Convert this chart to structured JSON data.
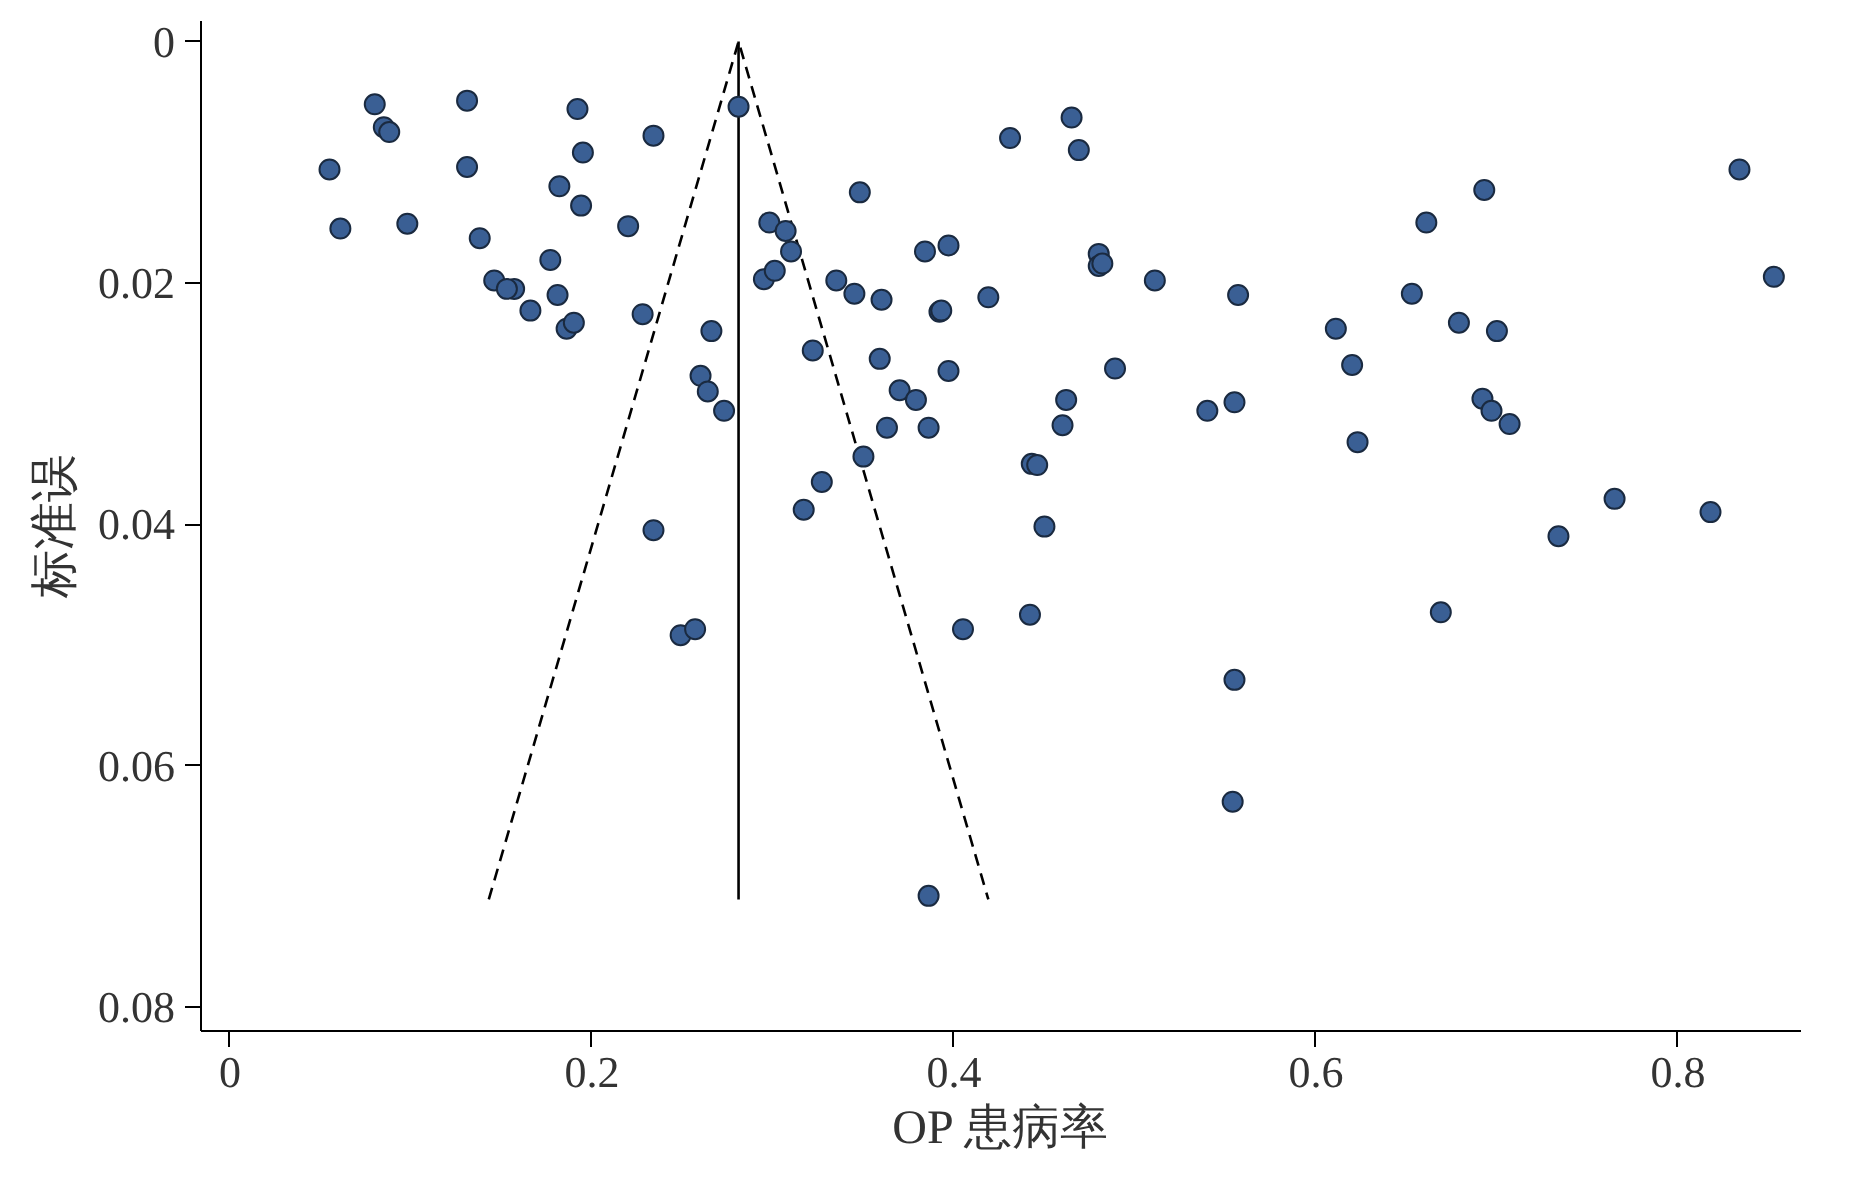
{
  "chart_data": {
    "type": "scatter",
    "xlabel": "OP 患病率",
    "ylabel": "标准误",
    "xlim": [
      -0.016,
      0.868
    ],
    "ylim": [
      0.082,
      -0.0017
    ],
    "xticks": [
      0,
      0.2,
      0.4,
      0.6,
      0.8
    ],
    "yticks": [
      {
        "value": 0,
        "label": "0"
      },
      {
        "value": 0.02,
        "label": "0.02"
      },
      {
        "value": 0.04,
        "label": "0.04"
      },
      {
        "value": 0.06,
        "label": "0.06"
      },
      {
        "value": 0.08,
        "label": "0.08"
      }
    ],
    "grid": false,
    "marker": "circle",
    "series": [
      {
        "color": "#3a5f94",
        "x": [
          0.055,
          0.061,
          0.08,
          0.085,
          0.088,
          0.098,
          0.131,
          0.131,
          0.138,
          0.146,
          0.157,
          0.153,
          0.166,
          0.177,
          0.181,
          0.182,
          0.186,
          0.19,
          0.192,
          0.194,
          0.195,
          0.22,
          0.228,
          0.234,
          0.234,
          0.249,
          0.257,
          0.26,
          0.264,
          0.266,
          0.273,
          0.281,
          0.295,
          0.298,
          0.301,
          0.307,
          0.31,
          0.322,
          0.327,
          0.317,
          0.335,
          0.345,
          0.35,
          0.348,
          0.359,
          0.363,
          0.36,
          0.37,
          0.379,
          0.384,
          0.386,
          0.392,
          0.393,
          0.397,
          0.397,
          0.386,
          0.405,
          0.419,
          0.431,
          0.443,
          0.446,
          0.45,
          0.442,
          0.46,
          0.462,
          0.465,
          0.469,
          0.48,
          0.48,
          0.482,
          0.489,
          0.511,
          0.54,
          0.555,
          0.555,
          0.554,
          0.557,
          0.611,
          0.623,
          0.62,
          0.653,
          0.661,
          0.669,
          0.679,
          0.693,
          0.692,
          0.697,
          0.7,
          0.707,
          0.734,
          0.765,
          0.818,
          0.834,
          0.853
        ],
        "values": [
          0.0106,
          0.0155,
          0.0052,
          0.0071,
          0.0075,
          0.0151,
          0.0049,
          0.0104,
          0.0163,
          0.0198,
          0.0205,
          0.0205,
          0.0223,
          0.0181,
          0.021,
          0.012,
          0.0238,
          0.0233,
          0.0056,
          0.0136,
          0.0092,
          0.0153,
          0.0226,
          0.0078,
          0.0405,
          0.0492,
          0.0487,
          0.0277,
          0.029,
          0.024,
          0.0306,
          0.0054,
          0.0197,
          0.015,
          0.019,
          0.0157,
          0.0174,
          0.0256,
          0.0365,
          0.0388,
          0.0198,
          0.0209,
          0.0344,
          0.0125,
          0.0263,
          0.032,
          0.0214,
          0.0289,
          0.0297,
          0.0174,
          0.032,
          0.0224,
          0.0223,
          0.0169,
          0.0273,
          0.0708,
          0.0487,
          0.0212,
          0.008,
          0.035,
          0.0351,
          0.0402,
          0.0475,
          0.0318,
          0.0297,
          0.0063,
          0.009,
          0.0176,
          0.0186,
          0.0184,
          0.0271,
          0.0198,
          0.0306,
          0.0299,
          0.0529,
          0.063,
          0.021,
          0.0238,
          0.0332,
          0.0268,
          0.0209,
          0.015,
          0.0473,
          0.0233,
          0.0123,
          0.0296,
          0.0306,
          0.024,
          0.0317,
          0.041,
          0.0379,
          0.039,
          0.0106,
          0.0195
        ]
      },
      {
        "type": "line",
        "color": "#000000",
        "line_style": "solid",
        "marker": "none",
        "x": [
          0.281,
          0.281
        ],
        "values": [
          0,
          0.0711
        ]
      },
      {
        "type": "line",
        "color": "#000000",
        "line_style": "dashed",
        "marker": "none",
        "x": [
          0.143,
          0.281,
          0.419
        ],
        "values": [
          0.0711,
          0,
          0.0711
        ]
      }
    ]
  }
}
